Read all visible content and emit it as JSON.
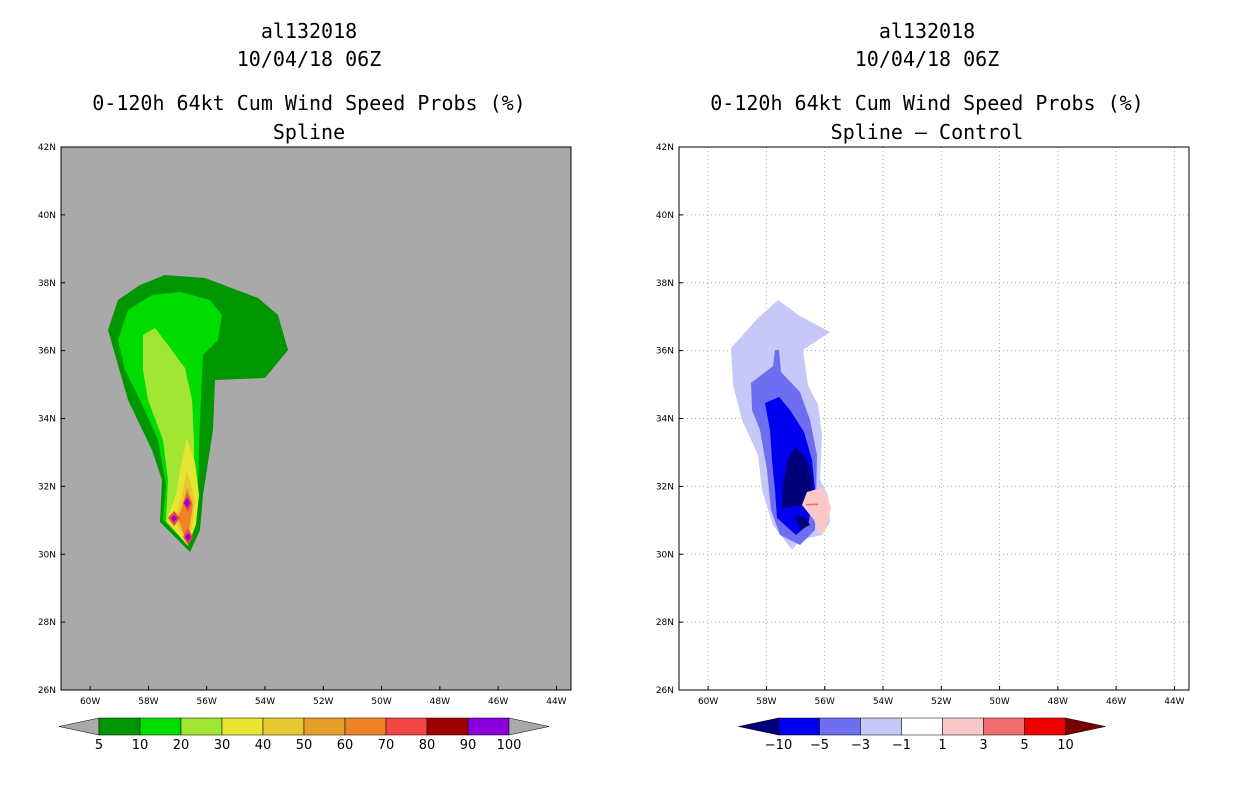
{
  "left_panel": {
    "storm_id": "al132018",
    "datetime": "10/04/18 06Z",
    "product": "0-120h 64kt Cum Wind Speed Probs (%)",
    "subtitle": "Spline",
    "lat_labels": [
      "42N",
      "40N",
      "38N",
      "36N",
      "34N",
      "32N",
      "30N",
      "28N",
      "26N"
    ],
    "lon_labels": [
      "60W",
      "58W",
      "56W",
      "54W",
      "52W",
      "50W",
      "48W",
      "46W",
      "44W"
    ],
    "background_color": "#a9a9a9",
    "colorbar": {
      "colors": [
        "#009600",
        "#00dc00",
        "#a0e632",
        "#e6e632",
        "#e6c832",
        "#e6a028",
        "#f08228",
        "#f04646",
        "#a00000",
        "#8c00dc"
      ],
      "labels": [
        "5",
        "10",
        "20",
        "30",
        "40",
        "50",
        "60",
        "70",
        "80",
        "90",
        "100"
      ],
      "under_color": "#a9a9a9",
      "over_color": "#a9a9a9"
    }
  },
  "right_panel": {
    "storm_id": "al132018",
    "datetime": "10/04/18 06Z",
    "product": "0-120h 64kt Cum Wind Speed Probs (%)",
    "subtitle": "Spline – Control",
    "lat_labels": [
      "42N",
      "40N",
      "38N",
      "36N",
      "34N",
      "32N",
      "30N",
      "28N",
      "26N"
    ],
    "lon_labels": [
      "60W",
      "58W",
      "56W",
      "54W",
      "52W",
      "50W",
      "48W",
      "46W",
      "44W"
    ],
    "background_color": "#ffffff",
    "colorbar": {
      "colors": [
        "#0000f0",
        "#6e6ef0",
        "#c8c8f8",
        "#ffffff",
        "#fac8c8",
        "#f06e6e",
        "#f00000"
      ],
      "labels": [
        "−10",
        "−5",
        "−3",
        "−1",
        "1",
        "3",
        "5",
        "10"
      ],
      "under_color": "#000078",
      "over_color": "#780000"
    }
  }
}
